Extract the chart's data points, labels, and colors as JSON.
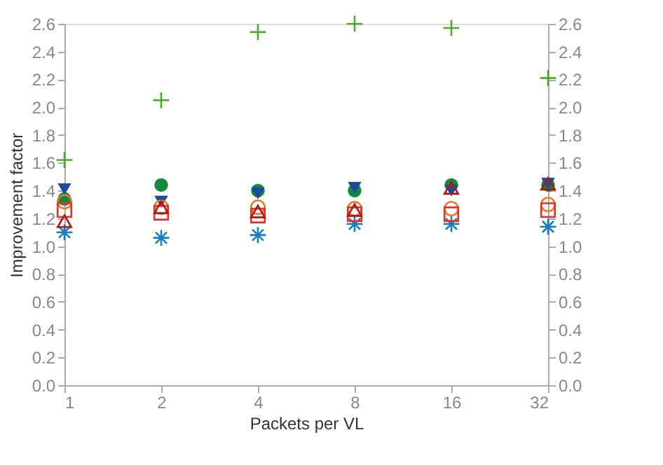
{
  "chart_data": {
    "type": "scatter",
    "xlabel": "Packets per VL",
    "ylabel": "Improvement factor",
    "x": [
      1,
      2,
      4,
      8,
      16,
      32
    ],
    "log": "x",
    "xlim": [
      1,
      32
    ],
    "xticks": [
      1,
      2,
      4,
      8,
      16,
      32
    ],
    "ylim": [
      0,
      2.6
    ],
    "yticks": [
      {
        "value": 0,
        "label": "0.0"
      },
      {
        "value": 0.2,
        "label": "0.2"
      },
      {
        "value": 0.4,
        "label": "0.4"
      },
      {
        "value": 0.6,
        "label": "0.6"
      },
      {
        "value": 0.8,
        "label": "0.8"
      },
      {
        "value": 1,
        "label": "1.0"
      },
      {
        "value": 1.2,
        "label": "1.2"
      },
      {
        "value": 1.4,
        "label": "1.4"
      },
      {
        "value": 1.6,
        "label": "1.6"
      },
      {
        "value": 1.8,
        "label": "1.8"
      },
      {
        "value": 2,
        "label": "2.0"
      },
      {
        "value": 2.2,
        "label": "2.2"
      },
      {
        "value": 2.4,
        "label": "2.4"
      },
      {
        "value": 2.6,
        "label": "2.6"
      }
    ],
    "y2lim": [
      0,
      2.6
    ],
    "y2ticks": [
      {
        "value": 0,
        "label": "0.0"
      },
      {
        "value": 0.2,
        "label": "0.2"
      },
      {
        "value": 0.4,
        "label": "0.4"
      },
      {
        "value": 0.6,
        "label": "0.6"
      },
      {
        "value": 0.8,
        "label": "0.8"
      },
      {
        "value": 1,
        "label": "1.0"
      },
      {
        "value": 1.2,
        "label": "1.2"
      },
      {
        "value": 1.4,
        "label": "1.4"
      },
      {
        "value": 1.6,
        "label": "1.6"
      },
      {
        "value": 1.8,
        "label": "1.8"
      },
      {
        "value": 2,
        "label": "2.0"
      },
      {
        "value": 2.2,
        "label": "2.2"
      },
      {
        "value": 2.4,
        "label": "2.4"
      },
      {
        "value": 2.6,
        "label": "2.6"
      }
    ],
    "grid": false,
    "series": [
      {
        "color": "#4dab2b",
        "marker": "cross",
        "values": [
          1.62,
          2.05,
          2.54,
          2.6,
          2.57,
          2.21
        ]
      },
      {
        "color": "#1a7dc4",
        "marker": "cross",
        "values": [
          1.1,
          1.06,
          1.08,
          1.16,
          1.16,
          1.14
        ]
      },
      {
        "color": "#138a3c",
        "marker": "circle",
        "values": [
          1.34,
          1.44,
          1.4,
          1.4,
          1.44,
          1.44
        ]
      },
      {
        "color": "#1a4a9a",
        "marker": "triangle",
        "values": [
          1.41,
          1.32,
          1.38,
          1.42,
          1.4,
          1.45
        ]
      },
      {
        "color": "#f07820",
        "marker": "circle",
        "values": [
          1.32,
          1.28,
          1.28,
          1.27,
          1.27,
          1.3
        ]
      },
      {
        "color": "#e8302a",
        "marker": "square",
        "values": [
          1.26,
          1.24,
          1.22,
          1.23,
          1.23,
          1.26
        ]
      },
      {
        "color": "#b01818",
        "marker": "triangle",
        "values": [
          1.18,
          1.28,
          1.25,
          1.26,
          1.42,
          1.45
        ]
      }
    ]
  }
}
